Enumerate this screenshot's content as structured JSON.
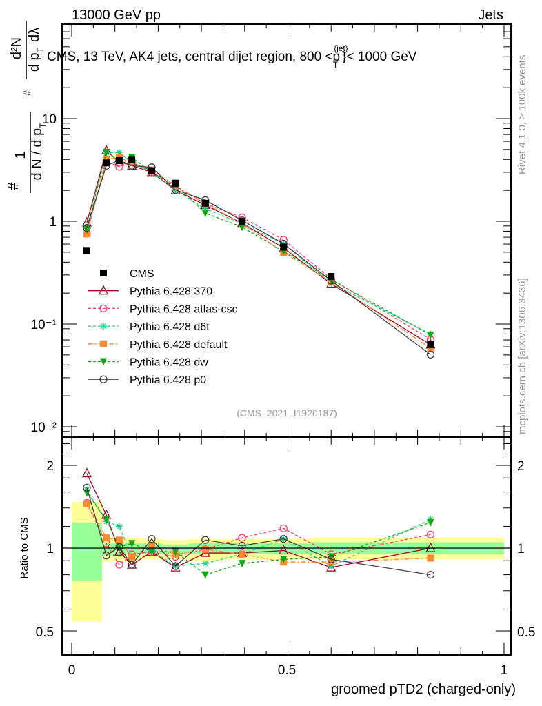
{
  "header": {
    "left": "13000 GeV pp",
    "right": "Jets"
  },
  "side_labels": {
    "rivet": "Rivet 4.1.0, ≥ 100k events",
    "mcplots": "mcplots.cern.ch [arXiv:1306.3436]"
  },
  "analysis_id": "(CMS_2021_I1920187)",
  "y_label": {
    "num": "1",
    "den": "d N / d p",
    "den_sub": "T",
    "hash": "#",
    "num2": "d²N",
    "den2": "d p",
    "den2_sub": "T",
    "den2_tail": "dλ",
    "hash2": "#"
  },
  "chart_data": [
    {
      "type": "line",
      "panel": "main",
      "title": "CMS, 13 TeV, AK4 jets, central dijet region, 800 <p_T^{jet}< 1000 GeV",
      "title_parts": {
        "pre": "CMS, 13 TeV, AK4 jets, central dijet region, 800 <p",
        "sup": "{jet}",
        "sub": "T",
        "post": "}< 1000 GeV"
      },
      "xlabel": "groomed pTD2 (charged-only)",
      "ylabel": "1/(dN/dp_T) d²N/(dp_T dλ)",
      "yscale": "log",
      "xlim": [
        -0.022,
        1.019
      ],
      "ylim": [
        0.0079,
        83
      ],
      "y_tick_labels": [
        "10",
        "1",
        "10⁻¹",
        "10⁻²"
      ],
      "y_tick_values": [
        10,
        1,
        0.1,
        0.01
      ],
      "legend_position": "center-left",
      "x": [
        0.035,
        0.08,
        0.11,
        0.139,
        0.185,
        0.24,
        0.309,
        0.394,
        0.49,
        0.6,
        0.83
      ],
      "reference": {
        "name": "CMS",
        "values": [
          0.52,
          3.7,
          3.9,
          4.0,
          3.1,
          2.35,
          1.5,
          1.0,
          0.56,
          0.29,
          0.063
        ],
        "color": "#000000"
      },
      "series": [
        {
          "name": "Pythia 6.428 370",
          "color": "#9b0b24",
          "dash": "",
          "marker": "triangle-open",
          "ratio": [
            1.87,
            1.32,
            0.97,
            0.87,
            0.97,
            0.85,
            0.96,
            0.96,
            0.98,
            0.85,
            1.0
          ]
        },
        {
          "name": "Pythia 6.428 atlas-csc",
          "color": "#ff3366",
          "dash": "4,3",
          "marker": "circle-open",
          "ratio": [
            1.46,
            1.04,
            0.87,
            0.95,
            0.97,
            0.93,
            0.99,
            1.09,
            1.18,
            0.95,
            1.12
          ]
        },
        {
          "name": "Pythia 6.428 d6t",
          "color": "#1ccf8c",
          "dash": "4,3",
          "marker": "asterisk",
          "ratio": [
            1.63,
            1.25,
            1.2,
            0.93,
            0.98,
            0.86,
            0.88,
            0.95,
            1.08,
            0.86,
            1.27
          ]
        },
        {
          "name": "Pythia 6.428 default",
          "color": "#ff8833",
          "dash": "7,3,2,3",
          "marker": "square",
          "ratio": [
            1.45,
            1.09,
            1.07,
            0.93,
            1.02,
            0.95,
            0.99,
            0.95,
            0.89,
            0.89,
            0.92
          ]
        },
        {
          "name": "Pythia 6.428 dw",
          "color": "#10a810",
          "dash": "4,3",
          "marker": "triangle-down",
          "ratio": [
            1.59,
            1.27,
            1.01,
            1.04,
            0.97,
            0.97,
            0.8,
            0.88,
            0.91,
            0.93,
            1.24
          ]
        },
        {
          "name": "Pythia 6.428 p0",
          "color": "#444444",
          "dash": "",
          "marker": "circle-open",
          "ratio": [
            1.66,
            0.94,
            1.01,
            0.87,
            1.08,
            0.86,
            1.07,
            1.02,
            1.08,
            0.91,
            0.8
          ]
        }
      ]
    },
    {
      "type": "line",
      "panel": "ratio",
      "ylabel": "Ratio to CMS",
      "yscale": "log",
      "ylim": [
        0.41,
        2.53
      ],
      "y_tick_labels": [
        "2",
        "1",
        "0.5"
      ],
      "y_tick_values": [
        2,
        1,
        0.5
      ],
      "x_tick_labels": [
        "0",
        "0.5",
        "1"
      ],
      "x_tick_values": [
        0,
        0.5,
        1
      ],
      "band_bin_edges": [
        0,
        0.07,
        0.095,
        0.125,
        0.16,
        0.21,
        0.27,
        0.35,
        0.43,
        0.55,
        0.66,
        1.0
      ],
      "band_yellow": [
        [
          0.54,
          1.47
        ],
        [
          0.9,
          1.09
        ],
        [
          0.9,
          1.09
        ],
        [
          0.9,
          1.09
        ],
        [
          0.91,
          1.08
        ],
        [
          0.91,
          1.07
        ],
        [
          0.9,
          1.08
        ],
        [
          0.91,
          1.08
        ],
        [
          0.91,
          1.08
        ],
        [
          0.91,
          1.09
        ],
        [
          0.91,
          1.09
        ]
      ],
      "band_green": [
        [
          0.76,
          1.24
        ],
        [
          0.94,
          1.04
        ],
        [
          0.94,
          1.04
        ],
        [
          0.95,
          1.04
        ],
        [
          0.95,
          1.04
        ],
        [
          0.95,
          1.03
        ],
        [
          0.95,
          1.04
        ],
        [
          0.95,
          1.04
        ],
        [
          0.95,
          1.04
        ],
        [
          0.95,
          1.05
        ],
        [
          0.95,
          1.05
        ]
      ]
    }
  ]
}
